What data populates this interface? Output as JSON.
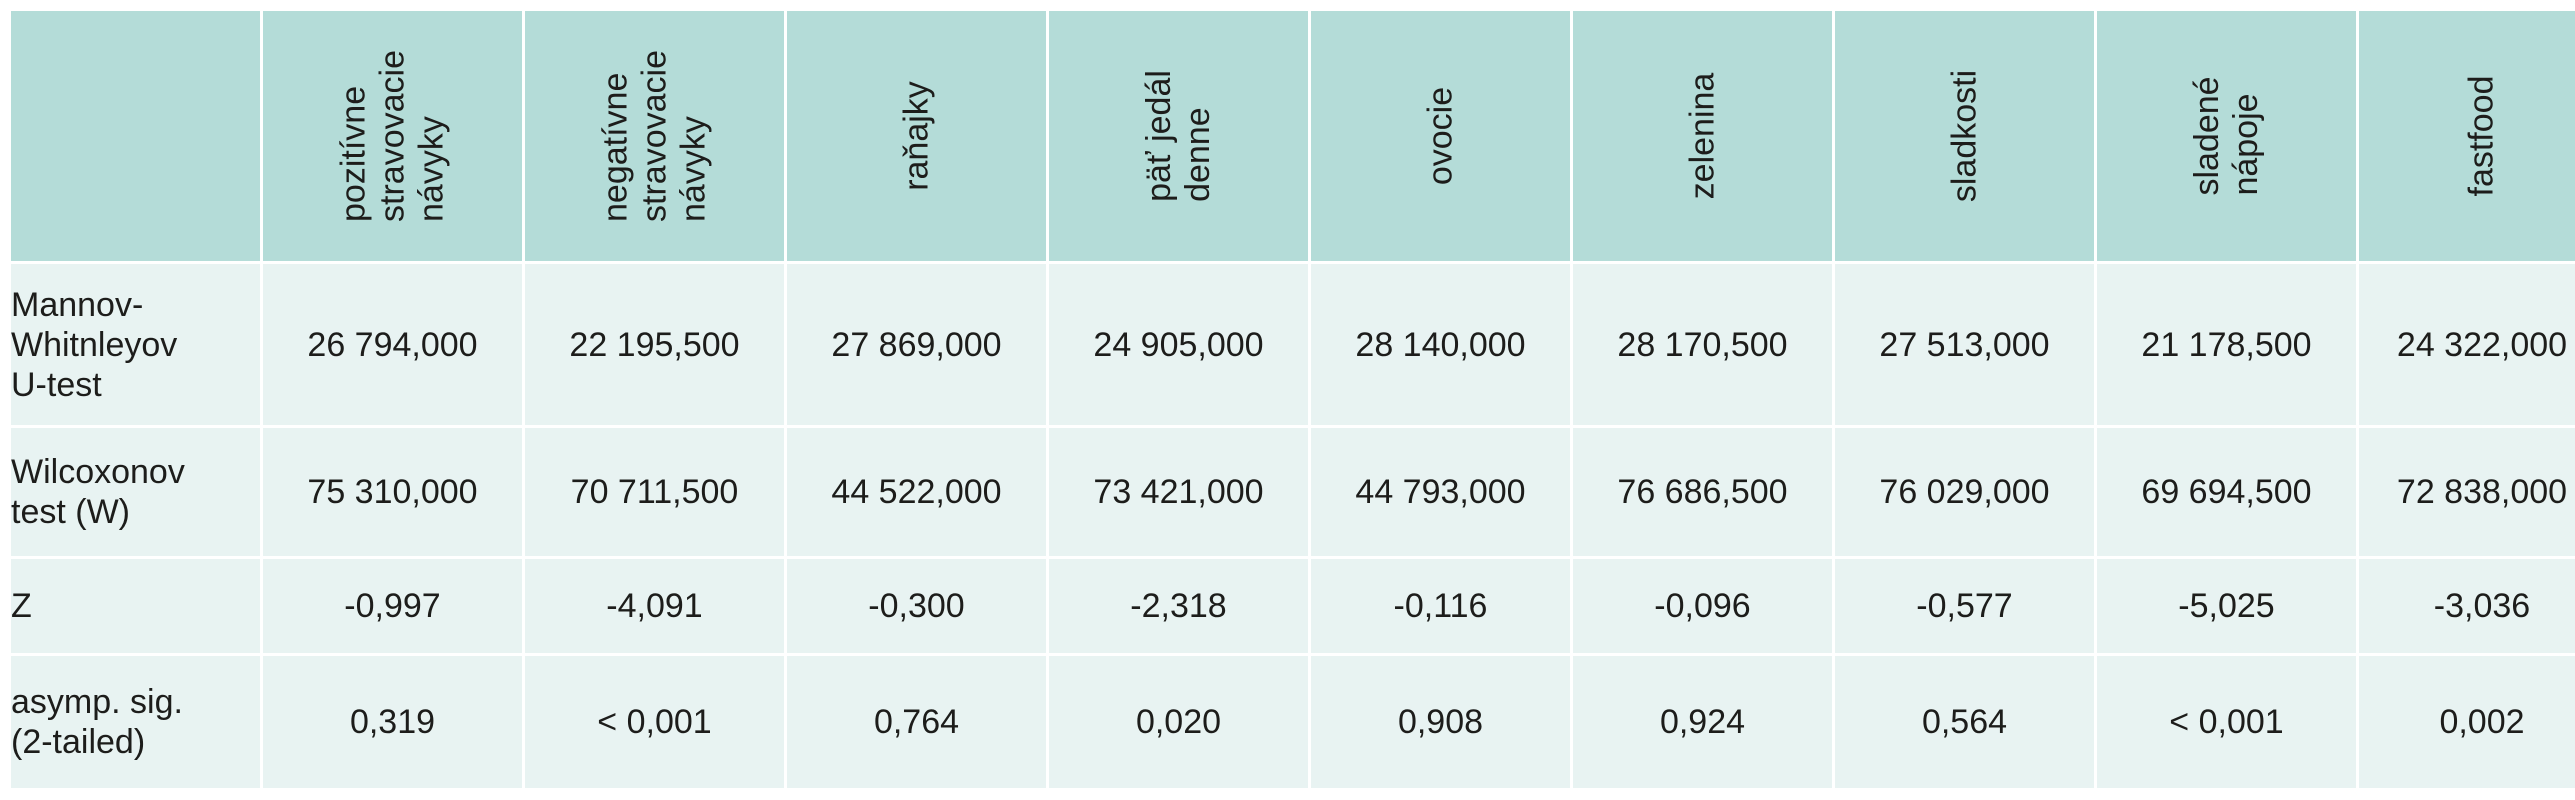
{
  "columns": [
    "pozitívne\nstravovacie\nnávyky",
    "negatívne\nstravovacie\nnávyky",
    "raňajky",
    "päť jedál\ndenne",
    "ovocie",
    "zelenina",
    "sladkosti",
    "sladené\nnápoje",
    "fastfood"
  ],
  "rows": [
    {
      "label": "Mannov-\nWhitnleyov\nU-test",
      "values": [
        "26 794,000",
        "22 195,500",
        "27 869,000",
        "24 905,000",
        "28 140,000",
        "28 170,500",
        "27 513,000",
        "21 178,500",
        "24 322,000"
      ]
    },
    {
      "label": "Wilcoxonov\ntest (W)",
      "values": [
        "75 310,000",
        "70 711,500",
        "44 522,000",
        "73 421,000",
        "44 793,000",
        "76 686,500",
        "76 029,000",
        "69 694,500",
        "72 838,000"
      ]
    },
    {
      "label": "Z",
      "values": [
        "-0,997",
        "-4,091",
        "-0,300",
        "-2,318",
        "-0,116",
        "-0,096",
        "-0,577",
        "-5,025",
        "-3,036"
      ]
    },
    {
      "label": "asymp. sig.\n(2-tailed)",
      "values": [
        "0,319",
        "< 0,001",
        "0,764",
        "0,020",
        "0,908",
        "0,924",
        "0,564",
        "< 0,001",
        "0,002"
      ]
    }
  ],
  "colors": {
    "header_bg": "#b4dcd8",
    "row_tint_bg": "#e8f3f2",
    "row_light_bg": "#ffffff"
  }
}
